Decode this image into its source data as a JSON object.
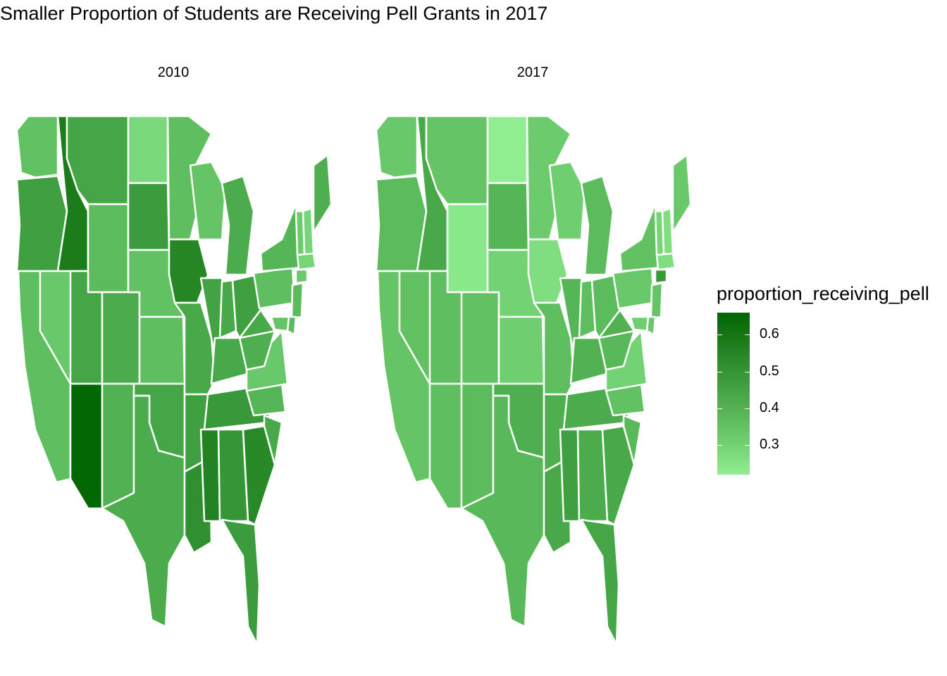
{
  "chart_data": {
    "type": "choropleth",
    "title": "Smaller Proportion of Students are Receiving Pell Grants in 2017",
    "facets": [
      "2010",
      "2017"
    ],
    "legend": {
      "title": "proportion_receiving_pell",
      "ticks": [
        "0.6",
        "0.5",
        "0.4",
        "0.3"
      ],
      "tick_values": [
        0.6,
        0.5,
        0.4,
        0.3
      ],
      "min": 0.22,
      "max": 0.66,
      "low_color": "#90ee90",
      "high_color": "#006400"
    },
    "states": [
      {
        "state": "WA",
        "2010": 0.36,
        "2017": 0.34
      },
      {
        "state": "OR",
        "2010": 0.47,
        "2017": 0.38
      },
      {
        "state": "CA",
        "2010": 0.37,
        "2017": 0.35
      },
      {
        "state": "ID",
        "2010": 0.58,
        "2017": 0.44
      },
      {
        "state": "NV",
        "2010": 0.34,
        "2017": 0.36
      },
      {
        "state": "MT",
        "2010": 0.45,
        "2017": 0.35
      },
      {
        "state": "WY",
        "2010": 0.38,
        "2017": 0.24
      },
      {
        "state": "UT",
        "2010": 0.45,
        "2017": 0.37
      },
      {
        "state": "AZ",
        "2010": 0.65,
        "2017": 0.37
      },
      {
        "state": "CO",
        "2010": 0.43,
        "2017": 0.36
      },
      {
        "state": "NM",
        "2010": 0.41,
        "2017": 0.38
      },
      {
        "state": "ND",
        "2010": 0.29,
        "2017": 0.22
      },
      {
        "state": "SD",
        "2010": 0.48,
        "2017": 0.4
      },
      {
        "state": "NE",
        "2010": 0.36,
        "2017": 0.31
      },
      {
        "state": "KS",
        "2010": 0.37,
        "2017": 0.32
      },
      {
        "state": "OK",
        "2010": 0.45,
        "2017": 0.42
      },
      {
        "state": "TX",
        "2010": 0.43,
        "2017": 0.39
      },
      {
        "state": "MN",
        "2010": 0.37,
        "2017": 0.33
      },
      {
        "state": "IA",
        "2010": 0.55,
        "2017": 0.27
      },
      {
        "state": "MO",
        "2010": 0.44,
        "2017": 0.37
      },
      {
        "state": "AR",
        "2010": 0.47,
        "2017": 0.42
      },
      {
        "state": "LA",
        "2010": 0.52,
        "2017": 0.44
      },
      {
        "state": "WI",
        "2010": 0.35,
        "2017": 0.32
      },
      {
        "state": "IL",
        "2010": 0.46,
        "2017": 0.4
      },
      {
        "state": "MI",
        "2010": 0.43,
        "2017": 0.38
      },
      {
        "state": "IN",
        "2010": 0.44,
        "2017": 0.37
      },
      {
        "state": "OH",
        "2010": 0.47,
        "2017": 0.38
      },
      {
        "state": "KY",
        "2010": 0.44,
        "2017": 0.41
      },
      {
        "state": "TN",
        "2010": 0.49,
        "2017": 0.43
      },
      {
        "state": "MS",
        "2010": 0.56,
        "2017": 0.47
      },
      {
        "state": "AL",
        "2010": 0.5,
        "2017": 0.43
      },
      {
        "state": "GA",
        "2010": 0.54,
        "2017": 0.44
      },
      {
        "state": "FL",
        "2010": 0.48,
        "2017": 0.45
      },
      {
        "state": "SC",
        "2010": 0.44,
        "2017": 0.39
      },
      {
        "state": "NC",
        "2010": 0.4,
        "2017": 0.36
      },
      {
        "state": "VA",
        "2010": 0.34,
        "2017": 0.31
      },
      {
        "state": "WV",
        "2010": 0.42,
        "2017": 0.39
      },
      {
        "state": "PA",
        "2010": 0.37,
        "2017": 0.34
      },
      {
        "state": "NY",
        "2010": 0.4,
        "2017": 0.36
      },
      {
        "state": "ME",
        "2010": 0.42,
        "2017": 0.34
      },
      {
        "state": "NH",
        "2010": 0.3,
        "2017": 0.27
      },
      {
        "state": "VT",
        "2010": 0.33,
        "2017": 0.3
      },
      {
        "state": "MA",
        "2010": 0.3,
        "2017": 0.27
      },
      {
        "state": "CT",
        "2010": 0.34,
        "2017": 0.49
      },
      {
        "state": "NJ",
        "2010": 0.38,
        "2017": 0.35
      },
      {
        "state": "MD",
        "2010": 0.35,
        "2017": 0.32
      },
      {
        "state": "DE",
        "2010": 0.38,
        "2017": 0.34
      }
    ]
  }
}
